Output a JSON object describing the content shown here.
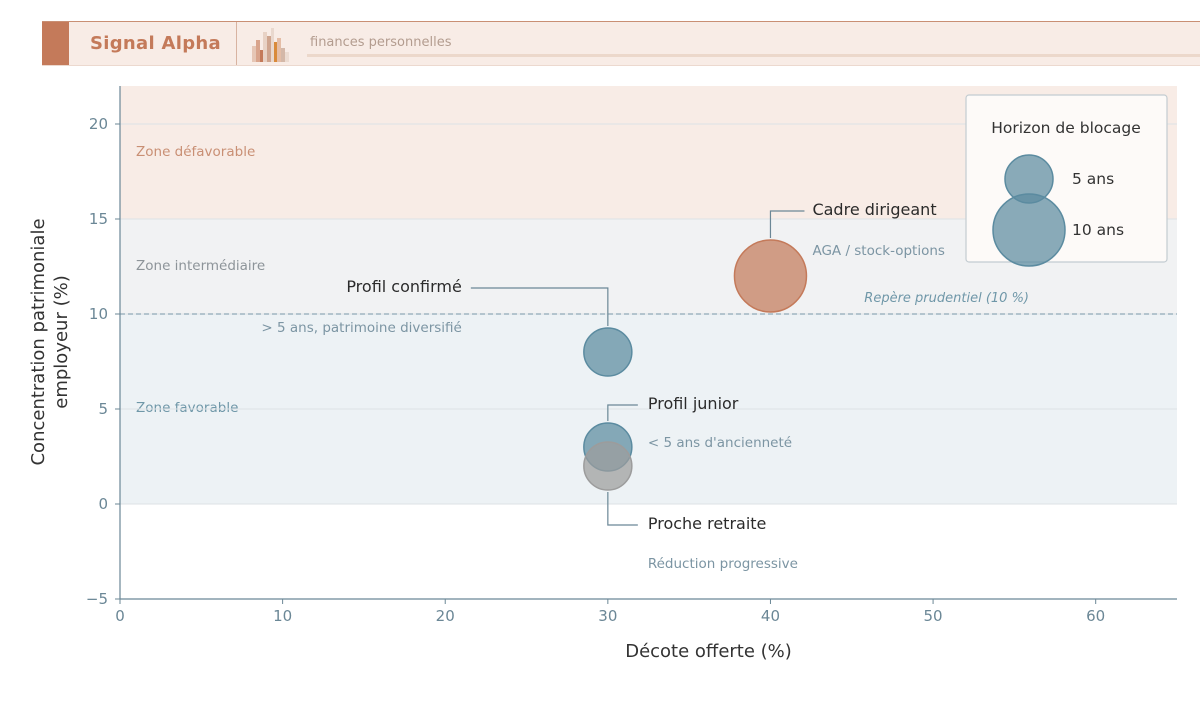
{
  "header": {
    "brand": "Signal Alpha",
    "tagline": "finances personnelles",
    "logo_icon": "bar-chart-logo-icon",
    "colors": {
      "accent": "#c47a5a",
      "band": "#f8ece6"
    }
  },
  "chart_data": {
    "type": "scatter",
    "subtype": "bubble",
    "title": "",
    "xlabel": "Décote offerte (%)",
    "ylabel": "Concentration patrimoniale employeur (%)",
    "ylabel_lines": [
      "Concentration patrimoniale",
      "employeur (%)"
    ],
    "xlim": [
      0,
      65
    ],
    "ylim": [
      -5,
      22
    ],
    "x_ticks": [
      0,
      10,
      20,
      30,
      40,
      50,
      60
    ],
    "y_ticks": [
      -5,
      0,
      5,
      10,
      15,
      20
    ],
    "y_tick_labels": [
      "−5",
      "0",
      "5",
      "10",
      "15",
      "20"
    ],
    "grid": "horizontal",
    "zones": [
      {
        "label": "Zone défavorable",
        "y_from": 15,
        "y_to": 22,
        "color": "#f8ece6",
        "label_color": "#c98f74"
      },
      {
        "label": "Zone intermédiaire",
        "y_from": 10,
        "y_to": 15,
        "color": "#f1f2f3",
        "label_color": "#8d9499"
      },
      {
        "label": "Zone favorable",
        "y_from": 0,
        "y_to": 10,
        "color": "#edf2f5",
        "label_color": "#6f97a8"
      }
    ],
    "reference_line": {
      "y": 10,
      "label": "Repère prudentiel (10 %)"
    },
    "points": [
      {
        "name": "Profil confirmé",
        "sublabel": "> 5 ans, patrimoine diversifié",
        "x": 30,
        "y": 8,
        "horizon_years": 5,
        "color": "#5b8ba0"
      },
      {
        "name": "Cadre dirigeant",
        "sublabel": "AGA / stock-options",
        "x": 40,
        "y": 12,
        "horizon_years": 10,
        "color": "#c47a5a"
      },
      {
        "name": "Profil junior",
        "sublabel": "< 5 ans d'ancienneté",
        "x": 30,
        "y": 3,
        "horizon_years": 5,
        "color": "#5b8ba0"
      },
      {
        "name": "Proche retraite",
        "sublabel": "Réduction progressive",
        "x": 30,
        "y": 2,
        "horizon_years": 5,
        "color": "#9c9c9c"
      }
    ],
    "legend": {
      "title": "Horizon de blocage",
      "position": "top-right",
      "entries": [
        {
          "label": "5 ans",
          "horizon_years": 5
        },
        {
          "label": "10 ans",
          "horizon_years": 10
        }
      ]
    }
  }
}
